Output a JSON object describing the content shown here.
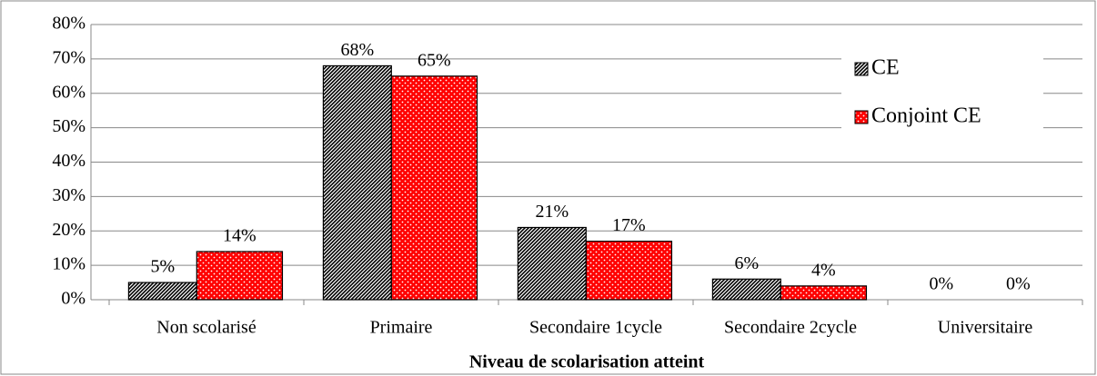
{
  "chart_data": {
    "type": "bar",
    "xlabel": "Niveau de scolarisation atteint",
    "categories": [
      "Non scolarisé",
      "Primaire",
      "Secondaire 1cycle",
      "Secondaire 2cycle",
      "Universitaire"
    ],
    "series": [
      {
        "name": "CE",
        "color": "#000000",
        "values": [
          5,
          68,
          21,
          6,
          0
        ],
        "value_labels": [
          "5%",
          "68%",
          "21%",
          "6%",
          "0%"
        ]
      },
      {
        "name": "Conjoint CE",
        "color": "#ff0000",
        "values": [
          14,
          65,
          17,
          4,
          0
        ],
        "value_labels": [
          "14%",
          "65%",
          "17%",
          "4%",
          "0%"
        ]
      }
    ],
    "ylim": [
      0,
      80
    ],
    "yticks": [
      {
        "value": 0,
        "label": "0%"
      },
      {
        "value": 10,
        "label": "10%"
      },
      {
        "value": 20,
        "label": "20%"
      },
      {
        "value": 30,
        "label": "30%"
      },
      {
        "value": 40,
        "label": "40%"
      },
      {
        "value": 50,
        "label": "50%"
      },
      {
        "value": 60,
        "label": "60%"
      },
      {
        "value": 70,
        "label": "70%"
      },
      {
        "value": 80,
        "label": "80%"
      }
    ],
    "grid": true,
    "legend": "upper right"
  }
}
